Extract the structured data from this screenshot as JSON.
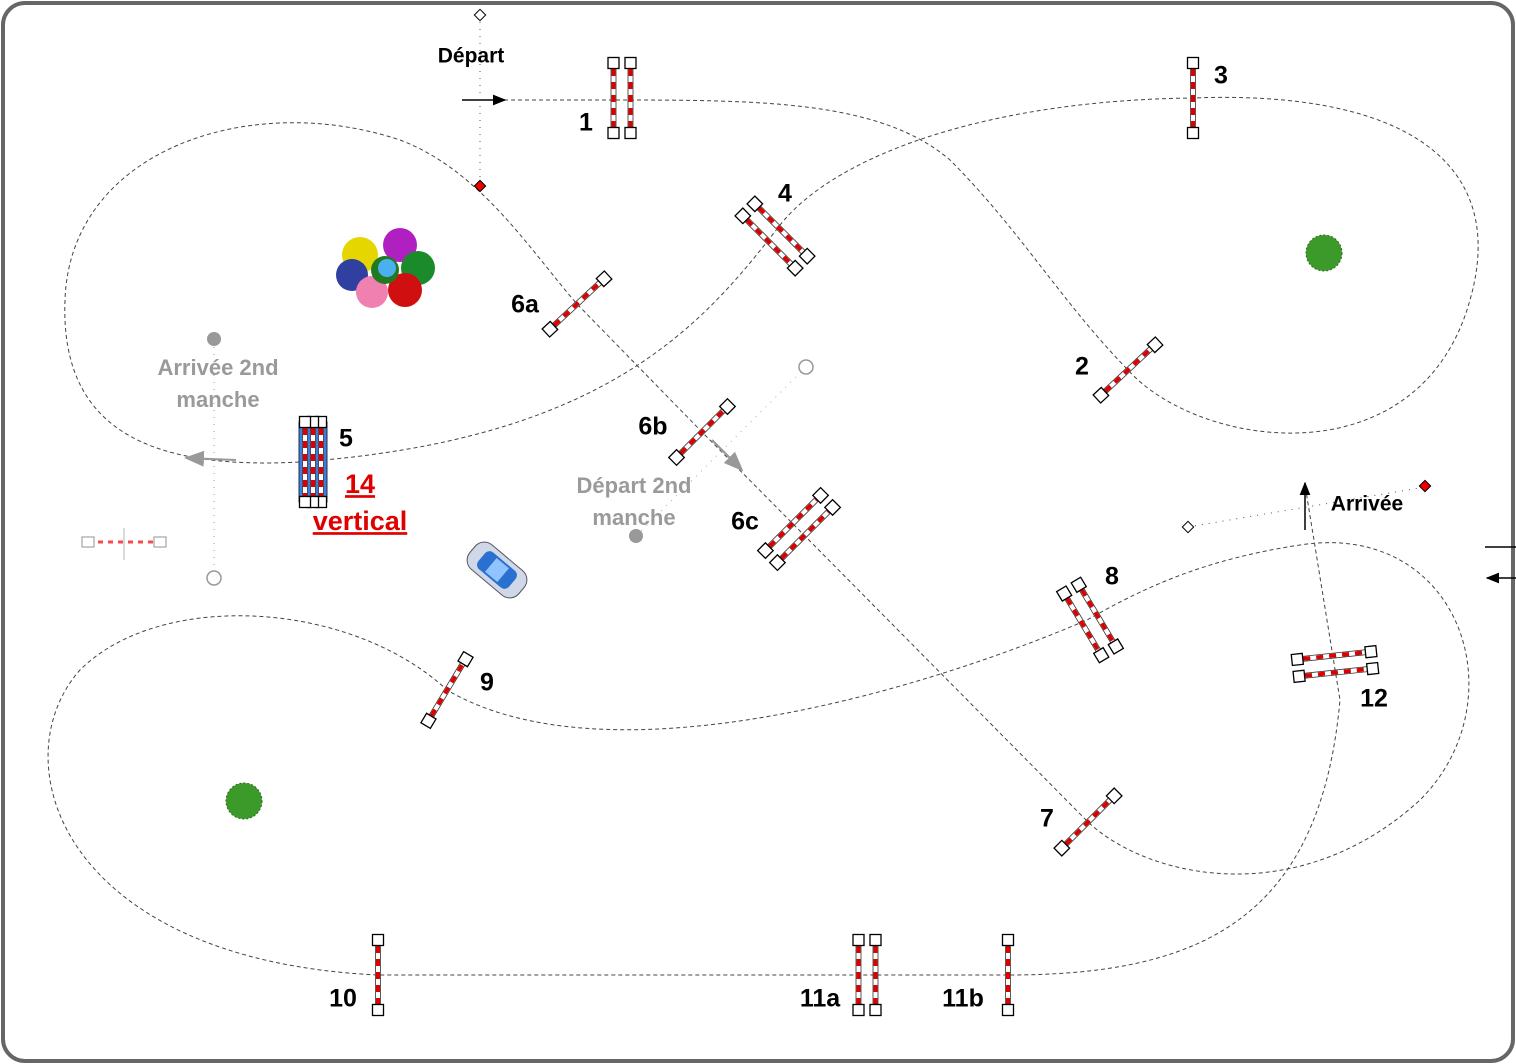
{
  "start": "Départ",
  "finish": "Arrivée",
  "jumps": [
    "1",
    "2",
    "3",
    "4",
    "5",
    "6a",
    "6b",
    "6c",
    "7",
    "8",
    "9",
    "10",
    "11a",
    "11b",
    "12"
  ],
  "joker": {
    "number": "14",
    "label": "vertical"
  },
  "second_round": {
    "start": [
      "Départ 2nd",
      "manche"
    ],
    "finish": [
      "Arrivée 2nd",
      "manche"
    ]
  }
}
